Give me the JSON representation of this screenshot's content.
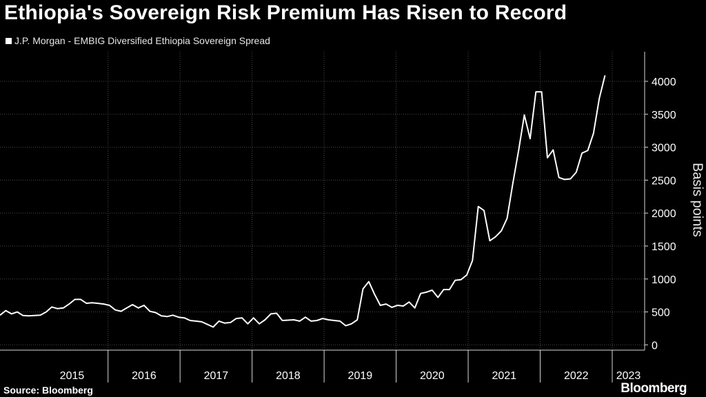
{
  "title": "Ethiopia's Sovereign Risk Premium Has Risen to Record",
  "legend_label": "J.P. Morgan - EMBIG Diversified Ethiopia Sovereign Spread",
  "source": "Source: Bloomberg",
  "brand": "Bloomberg",
  "colors": {
    "background": "#000000",
    "line": "#ffffff",
    "grid": "#4d4d4d",
    "text": "#ffffff"
  },
  "chart_data": {
    "type": "line",
    "title": "Ethiopia's Sovereign Risk Premium Has Risen to Record",
    "xlabel": "",
    "ylabel": "Basis points",
    "ylim": [
      -80,
      4450
    ],
    "yticks": [
      0,
      500,
      1000,
      1500,
      2000,
      2500,
      3000,
      3500,
      4000
    ],
    "ytick_labels": [
      "0",
      "500",
      "1000",
      "1500",
      "2000",
      "2500",
      "3000",
      "3500",
      "4000"
    ],
    "xlim": [
      2014.5,
      2023.45
    ],
    "year_labels": [
      "2015",
      "2016",
      "2017",
      "2018",
      "2019",
      "2020",
      "2021",
      "2022",
      "2023"
    ],
    "grid": true,
    "legend_position": "top-left",
    "series": [
      {
        "name": "J.P. Morgan - EMBIG Diversified Ethiopia Sovereign Spread",
        "points": [
          [
            2014.5,
            450
          ],
          [
            2014.58,
            520
          ],
          [
            2014.66,
            470
          ],
          [
            2014.74,
            500
          ],
          [
            2014.82,
            445
          ],
          [
            2014.9,
            440
          ],
          [
            2014.98,
            445
          ],
          [
            2015.06,
            450
          ],
          [
            2015.14,
            500
          ],
          [
            2015.22,
            575
          ],
          [
            2015.3,
            550
          ],
          [
            2015.38,
            560
          ],
          [
            2015.46,
            620
          ],
          [
            2015.54,
            690
          ],
          [
            2015.62,
            690
          ],
          [
            2015.7,
            630
          ],
          [
            2015.78,
            640
          ],
          [
            2015.86,
            630
          ],
          [
            2015.94,
            620
          ],
          [
            2016.02,
            600
          ],
          [
            2016.1,
            530
          ],
          [
            2016.18,
            510
          ],
          [
            2016.26,
            560
          ],
          [
            2016.34,
            610
          ],
          [
            2016.42,
            560
          ],
          [
            2016.5,
            600
          ],
          [
            2016.58,
            510
          ],
          [
            2016.66,
            490
          ],
          [
            2016.74,
            440
          ],
          [
            2016.82,
            430
          ],
          [
            2016.9,
            450
          ],
          [
            2016.98,
            420
          ],
          [
            2017.06,
            410
          ],
          [
            2017.14,
            370
          ],
          [
            2017.22,
            360
          ],
          [
            2017.3,
            350
          ],
          [
            2017.38,
            310
          ],
          [
            2017.46,
            270
          ],
          [
            2017.54,
            360
          ],
          [
            2017.62,
            330
          ],
          [
            2017.7,
            340
          ],
          [
            2017.78,
            400
          ],
          [
            2017.86,
            410
          ],
          [
            2017.94,
            320
          ],
          [
            2018.02,
            410
          ],
          [
            2018.1,
            320
          ],
          [
            2018.18,
            380
          ],
          [
            2018.26,
            470
          ],
          [
            2018.34,
            480
          ],
          [
            2018.42,
            370
          ],
          [
            2018.5,
            375
          ],
          [
            2018.58,
            380
          ],
          [
            2018.66,
            360
          ],
          [
            2018.74,
            420
          ],
          [
            2018.82,
            360
          ],
          [
            2018.9,
            370
          ],
          [
            2018.98,
            400
          ],
          [
            2019.06,
            380
          ],
          [
            2019.14,
            370
          ],
          [
            2019.22,
            360
          ],
          [
            2019.3,
            290
          ],
          [
            2019.38,
            320
          ],
          [
            2019.46,
            380
          ],
          [
            2019.54,
            850
          ],
          [
            2019.62,
            960
          ],
          [
            2019.7,
            770
          ],
          [
            2019.78,
            600
          ],
          [
            2019.86,
            620
          ],
          [
            2019.94,
            570
          ],
          [
            2020.02,
            600
          ],
          [
            2020.1,
            590
          ],
          [
            2020.18,
            650
          ],
          [
            2020.26,
            560
          ],
          [
            2020.34,
            780
          ],
          [
            2020.42,
            800
          ],
          [
            2020.5,
            830
          ],
          [
            2020.58,
            720
          ],
          [
            2020.66,
            840
          ],
          [
            2020.74,
            840
          ],
          [
            2020.82,
            980
          ],
          [
            2020.9,
            990
          ],
          [
            2020.98,
            1060
          ],
          [
            2021.06,
            1280
          ],
          [
            2021.14,
            2100
          ],
          [
            2021.22,
            2040
          ],
          [
            2021.3,
            1580
          ],
          [
            2021.38,
            1640
          ],
          [
            2021.46,
            1730
          ],
          [
            2021.54,
            1920
          ],
          [
            2021.62,
            2450
          ],
          [
            2021.7,
            2950
          ],
          [
            2021.78,
            3490
          ],
          [
            2021.86,
            3130
          ],
          [
            2021.94,
            3840
          ],
          [
            2022.02,
            3840
          ],
          [
            2022.1,
            2840
          ],
          [
            2022.18,
            2960
          ],
          [
            2022.26,
            2540
          ],
          [
            2022.34,
            2510
          ],
          [
            2022.42,
            2520
          ],
          [
            2022.5,
            2620
          ],
          [
            2022.58,
            2910
          ],
          [
            2022.66,
            2950
          ],
          [
            2022.74,
            3210
          ],
          [
            2022.82,
            3740
          ],
          [
            2022.9,
            4090
          ]
        ]
      }
    ]
  }
}
